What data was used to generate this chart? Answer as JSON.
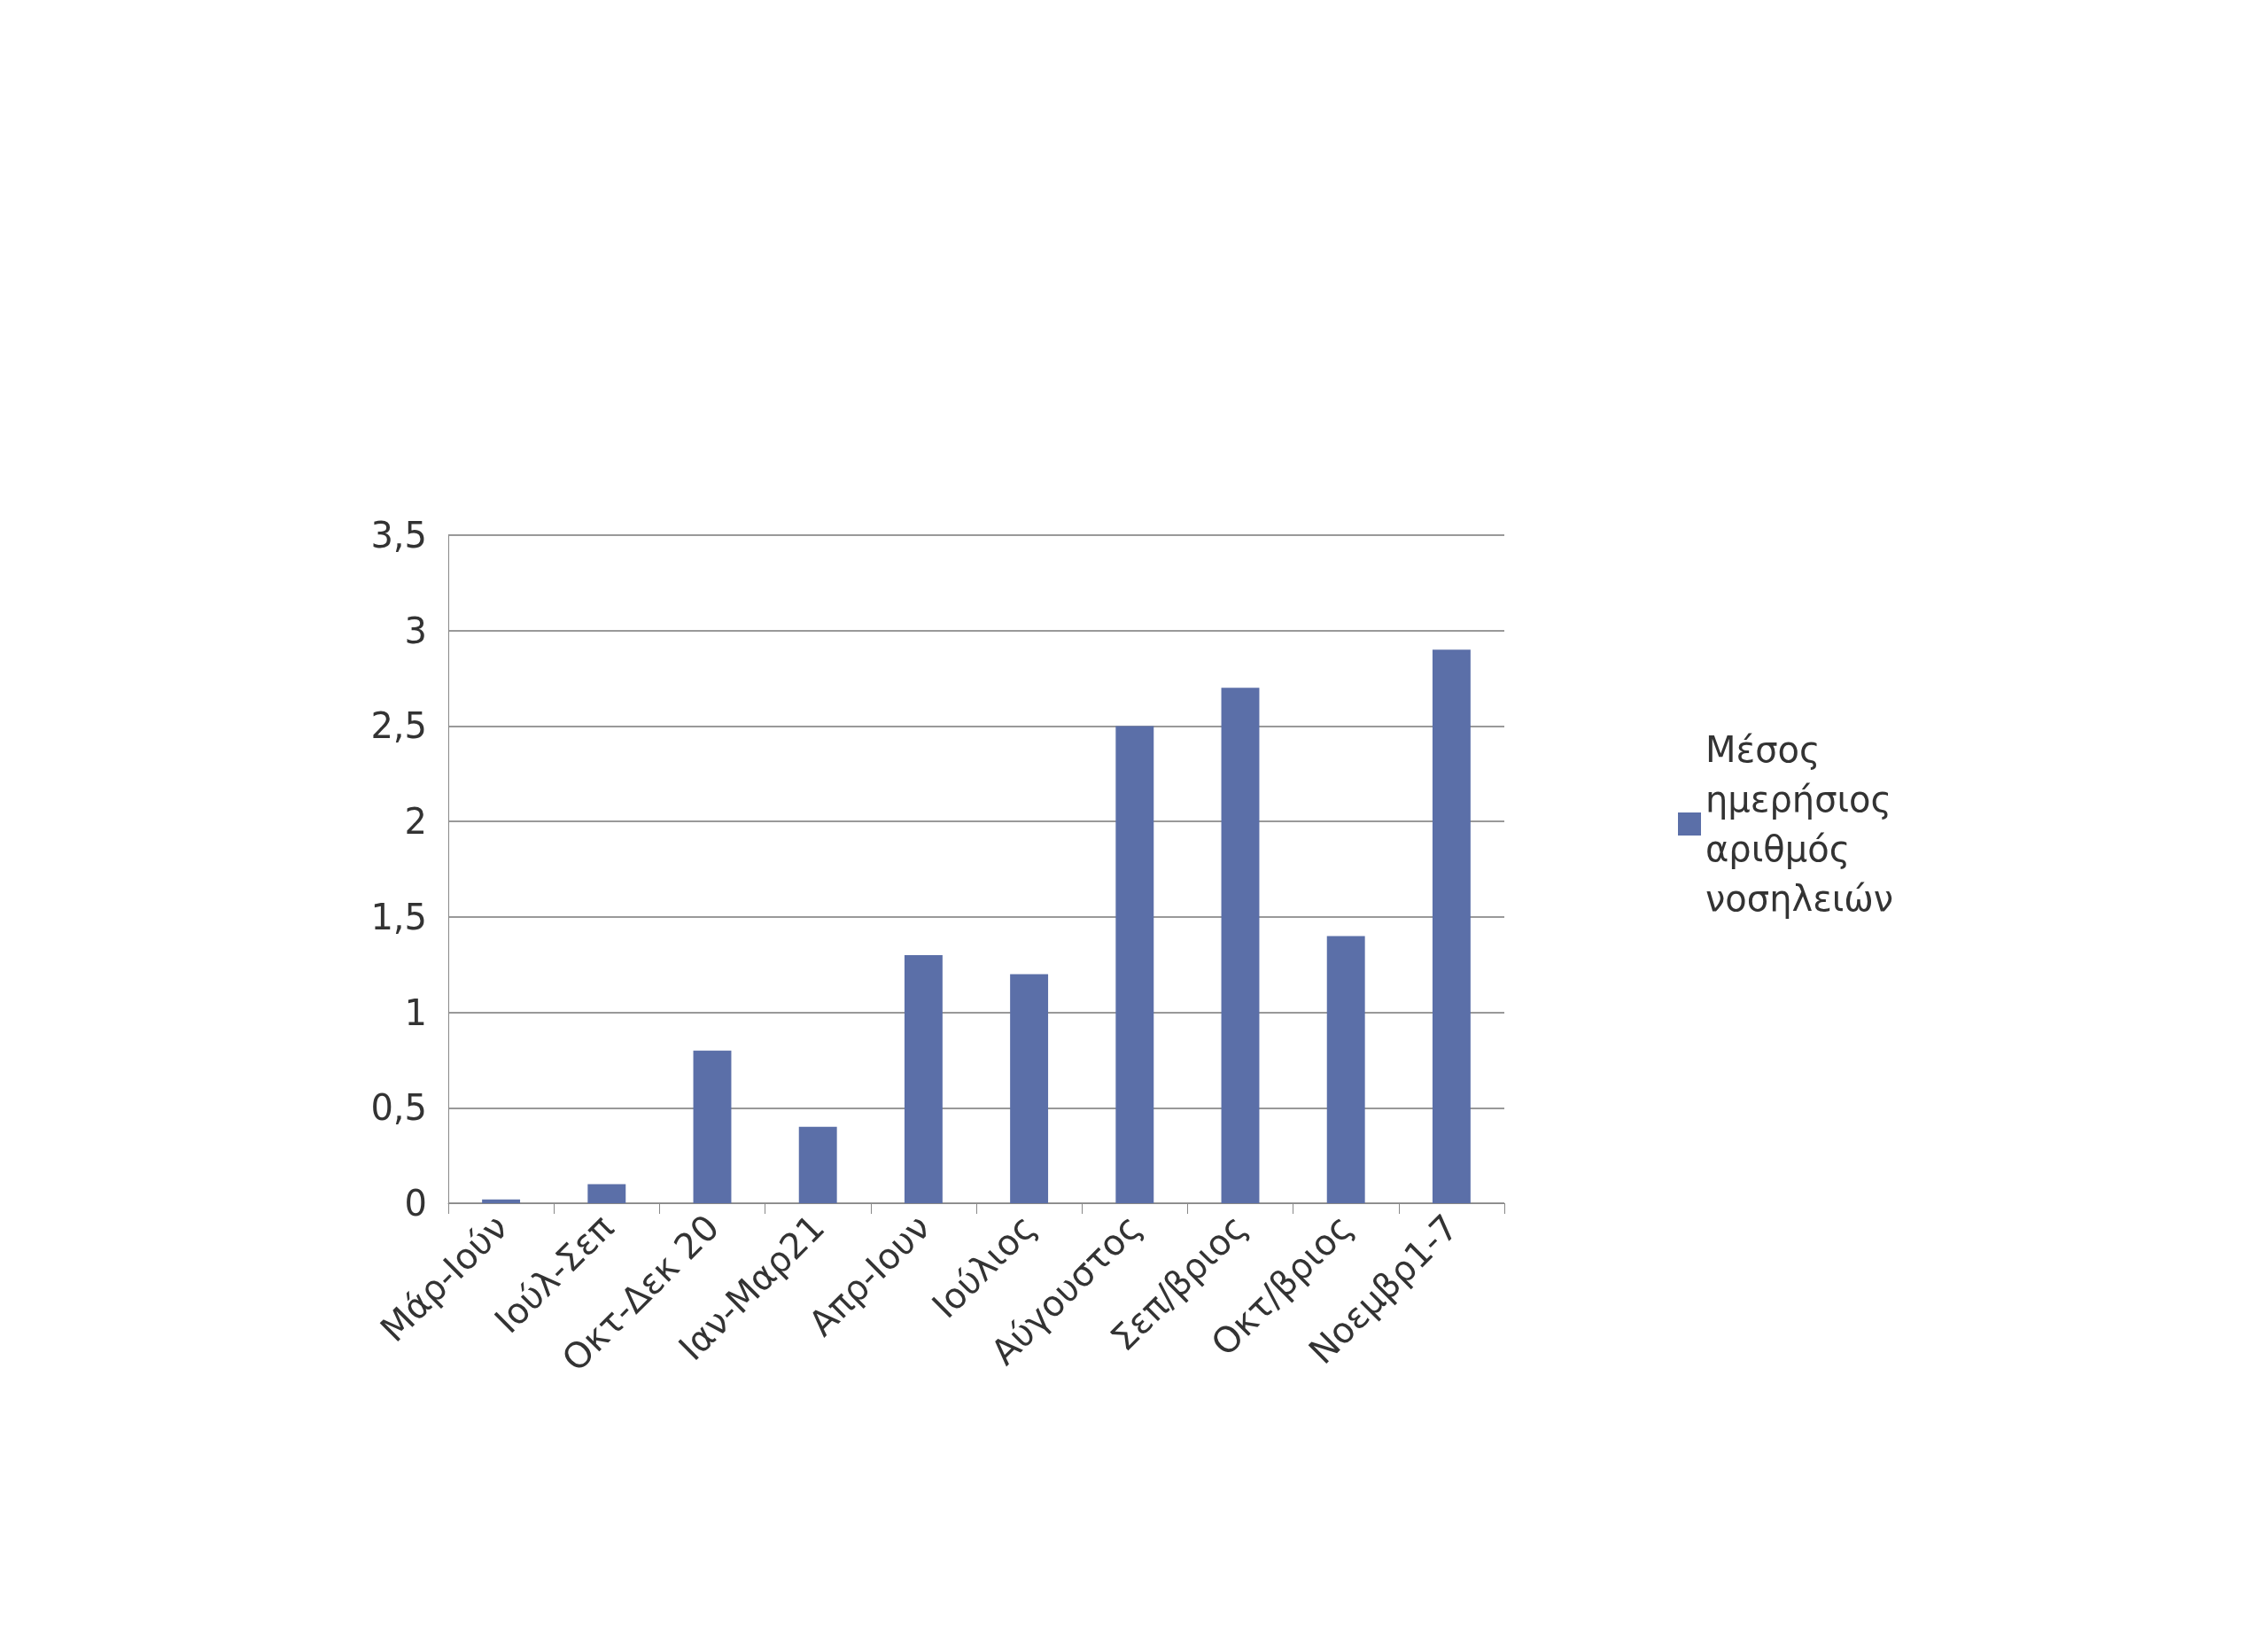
{
  "chart_data": {
    "type": "bar",
    "categories": [
      "Μάρ-Ιούν",
      "Ιούλ-Σεπ",
      "Οκτ-Δεκ 20",
      "Ιαν-Μαρ21",
      "Απρ-Ιουν",
      "Ιούλιος",
      "Αύγουστος",
      "Σεπ/βριος",
      "Οκτ/βριος",
      "Νοεμβρ1-7"
    ],
    "series": [
      {
        "name": "Μέσος ημερήσιος αριθμός νοσηλειών",
        "color": "#5b6fa8",
        "values": [
          0.02,
          0.1,
          0.8,
          0.4,
          1.3,
          1.2,
          2.5,
          2.7,
          1.4,
          2.9
        ]
      }
    ],
    "ylim": [
      0,
      3.5
    ],
    "yticks": [
      0,
      {
        "value": 0.5,
        "label": "0,5"
      },
      1,
      {
        "value": 1.5,
        "label": "1,5"
      },
      2,
      {
        "value": 2.5,
        "label": "2,5"
      },
      3,
      {
        "value": 3.5,
        "label": "3,5"
      }
    ],
    "grid": "y",
    "legend": "right"
  }
}
